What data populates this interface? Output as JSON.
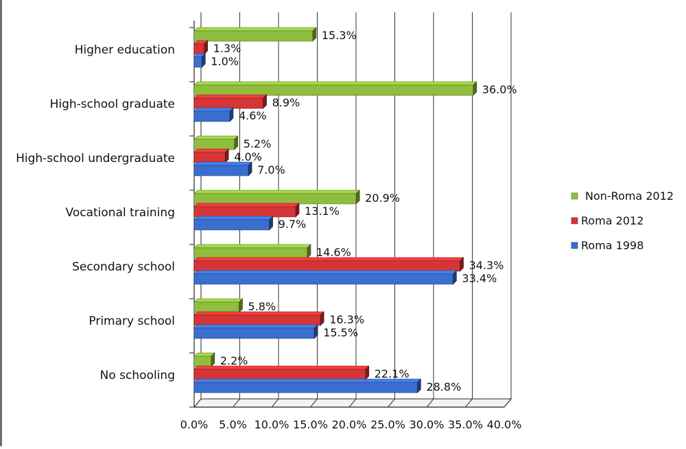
{
  "chart_data": {
    "type": "bar",
    "orientation": "horizontal",
    "categories": [
      "Higher education",
      "High-school graduate",
      "High-school undergraduate",
      "Vocational training",
      "Secondary school",
      "Primary school",
      "No schooling"
    ],
    "series": [
      {
        "name": "Non-Roma 2012",
        "color": "#8fbe3f",
        "values": [
          15.3,
          36.0,
          5.2,
          20.9,
          14.6,
          5.8,
          2.2
        ],
        "labels": [
          "15.3%",
          "36.0%",
          "5.2%",
          "20.9%",
          "14.6%",
          "5.8%",
          "2.2%"
        ]
      },
      {
        "name": "Roma 2012",
        "color": "#d63535",
        "values": [
          1.3,
          8.9,
          4.0,
          13.1,
          34.3,
          16.3,
          22.1
        ],
        "labels": [
          "1.3%",
          "8.9%",
          "4.0%",
          "13.1%",
          "34.3%",
          "16.3%",
          "22.1%"
        ]
      },
      {
        "name": "Roma 1998",
        "color": "#3a6fd0",
        "values": [
          1.0,
          4.6,
          7.0,
          9.7,
          33.4,
          15.5,
          28.8
        ],
        "labels": [
          "1.0%",
          "4.6%",
          "7.0%",
          "9.7%",
          "33.4%",
          "15.5%",
          "28.8%"
        ]
      }
    ],
    "xlim": [
      0,
      40
    ],
    "x_ticks": [
      "0.0%",
      "5.0%",
      "10.0%",
      "15.0%",
      "20.0%",
      "25.0%",
      "30.0%",
      "35.0%",
      "40.0%"
    ],
    "legend": {
      "position": "right",
      "entries": [
        "Non-Roma 2012",
        "Roma 2012",
        "Roma 1998"
      ]
    },
    "grid": true,
    "title": "",
    "xlabel": "",
    "ylabel": ""
  }
}
